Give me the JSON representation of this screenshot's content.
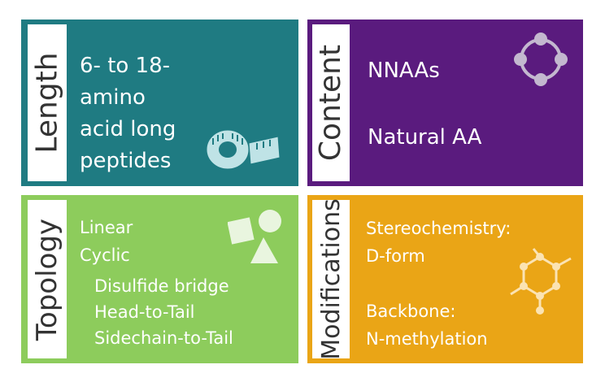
{
  "panels": {
    "length": {
      "title": "Length",
      "lines": [
        "6- to 18-amino",
        "acid long",
        "peptides"
      ],
      "color": "#1f7b82",
      "icon": "tape-measure-icon"
    },
    "content": {
      "title": "Content",
      "items": [
        "NNAAs",
        "Natural AA"
      ],
      "color": "#5a1b7e",
      "icon": "ring-molecule-icon"
    },
    "topology": {
      "title": "Topology",
      "items": [
        "Linear",
        "Cyclic"
      ],
      "subitems": [
        "Disulfide bridge",
        "Head-to-Tail",
        "Sidechain-to-Tail"
      ],
      "color": "#8dcc5c",
      "icon": "shapes-icon"
    },
    "modifications": {
      "title": "Modifications",
      "lines": [
        "Stereochemistry:",
        "D-form",
        "Backbone:",
        "N-methylation"
      ],
      "color": "#eaa516",
      "icon": "hexagon-molecule-icon"
    }
  }
}
